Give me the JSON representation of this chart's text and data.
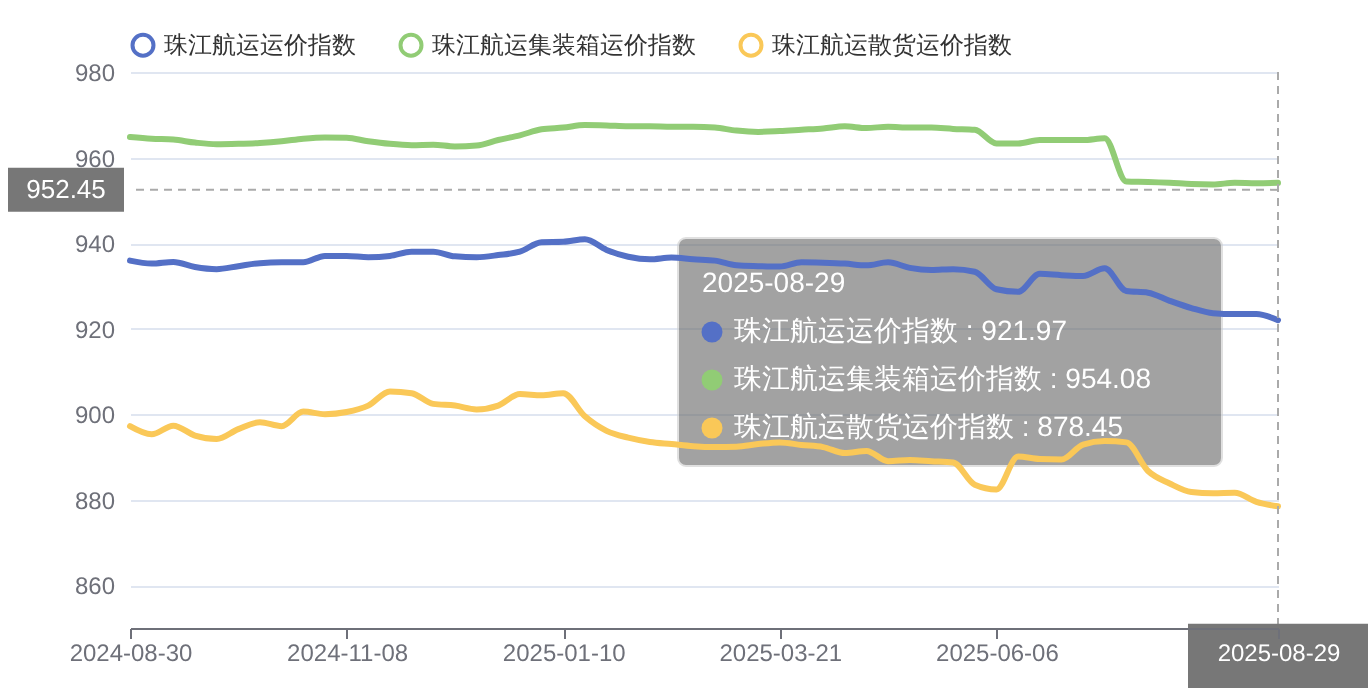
{
  "chart_data": {
    "type": "line",
    "categories": [
      "2024-08-30",
      null,
      null,
      null,
      null,
      null,
      null,
      null,
      null,
      null,
      "2024-11-08",
      null,
      null,
      null,
      null,
      null,
      null,
      null,
      null,
      null,
      "2025-01-10",
      null,
      null,
      null,
      null,
      null,
      null,
      null,
      null,
      null,
      "2025-03-21",
      null,
      null,
      null,
      null,
      null,
      null,
      null,
      null,
      null,
      "2025-06-06",
      null,
      null,
      null,
      null,
      null,
      null,
      null,
      null,
      null,
      null,
      null,
      null,
      "2025-08-29"
    ],
    "series": [
      {
        "name": "珠江航运运价指数",
        "color": "#5470c6",
        "values": [
          935.9,
          935.2,
          935.6,
          934.4,
          933.9,
          934.6,
          935.3,
          935.5,
          935.5,
          937.0,
          937.0,
          936.7,
          937.0,
          938.0,
          938.0,
          936.9,
          936.7,
          937.2,
          938.0,
          940.2,
          940.3,
          940.9,
          938.4,
          936.8,
          936.2,
          936.6,
          936.2,
          935.9,
          934.8,
          934.6,
          934.5,
          935.5,
          935.4,
          935.2,
          934.8,
          935.5,
          934.2,
          933.7,
          933.9,
          933.3,
          929.2,
          928.6,
          932.8,
          932.5,
          932.3,
          934.1,
          928.8,
          928.4,
          926.5,
          924.8,
          923.6,
          923.4,
          923.4,
          921.97
        ]
      },
      {
        "name": "珠江航运集装箱运价指数",
        "color": "#91cc75",
        "values": [
          964.8,
          964.4,
          964.2,
          963.5,
          963.1,
          963.2,
          963.4,
          963.8,
          964.4,
          964.7,
          964.6,
          963.8,
          963.2,
          962.9,
          963.0,
          962.6,
          962.8,
          964.1,
          965.2,
          966.6,
          967.0,
          967.6,
          967.5,
          967.3,
          967.3,
          967.2,
          967.2,
          967.0,
          966.3,
          966.0,
          966.2,
          966.5,
          966.8,
          967.3,
          966.9,
          967.2,
          967.0,
          967.0,
          966.7,
          966.5,
          963.3,
          963.3,
          964.1,
          964.1,
          964.1,
          964.5,
          954.4,
          954.3,
          954.1,
          953.8,
          953.7,
          954.1,
          954.0,
          954.08
        ]
      },
      {
        "name": "珠江航运散货运价指数",
        "color": "#fac858",
        "values": [
          897.2,
          895.3,
          897.3,
          895.0,
          894.2,
          896.5,
          898.1,
          897.2,
          900.6,
          900.0,
          900.5,
          902.0,
          905.3,
          904.9,
          902.4,
          902.0,
          901.1,
          902.0,
          904.7,
          904.4,
          904.9,
          899.5,
          896.1,
          894.5,
          893.5,
          893.0,
          892.5,
          892.3,
          892.4,
          893.0,
          893.4,
          892.8,
          892.3,
          890.9,
          891.4,
          889.0,
          889.3,
          889.0,
          888.7,
          883.5,
          882.4,
          890.1,
          889.5,
          889.4,
          892.9,
          893.7,
          893.4,
          886.7,
          883.8,
          881.8,
          881.5,
          881.6,
          879.5,
          878.45
        ]
      }
    ],
    "ylim": [
      850,
      980
    ],
    "yticks": [
      860,
      880,
      900,
      920,
      940,
      960,
      980
    ],
    "grid": "y",
    "legend": "top",
    "marker": "none",
    "ref_lines": [
      {
        "axis": "y",
        "value": 952.45,
        "label": "952.45"
      },
      {
        "axis": "x",
        "value": "2025-08-29"
      }
    ],
    "annotations": [
      "2025-08-29",
      "珠江航运运价指数 : 921.97",
      "珠江航运集装箱运价指数 : 954.08",
      "珠江航运散货运价指数 : 878.45"
    ]
  }
}
